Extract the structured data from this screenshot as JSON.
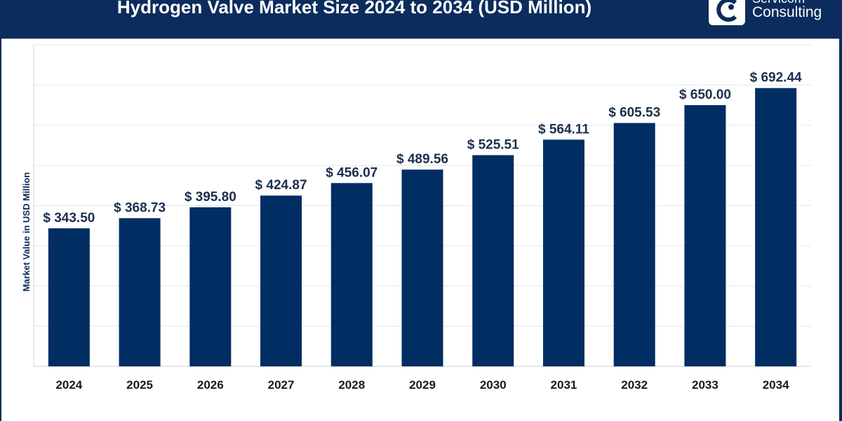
{
  "header": {
    "title": "Hydrogen Valve Market Size 2024 to 2034 (USD Million)",
    "logo_line1": "Servicom",
    "logo_line2": "Consulting"
  },
  "colors": {
    "bar": "#002d62",
    "header_bg": "#0b2c5c",
    "grid": "#e3e6ea"
  },
  "chart_data": {
    "type": "bar",
    "title": "Hydrogen Valve Market Size 2024 to 2034 (USD Million)",
    "xlabel": "",
    "ylabel": "Market Value in USD Million",
    "categories": [
      "2024",
      "2025",
      "2026",
      "2027",
      "2028",
      "2029",
      "2030",
      "2031",
      "2032",
      "2033",
      "2034"
    ],
    "values": [
      343.5,
      368.73,
      395.8,
      424.87,
      456.07,
      489.56,
      525.51,
      564.11,
      605.53,
      650.0,
      692.44
    ],
    "data_labels": [
      "$ 343.50",
      "$ 368.73",
      "$ 395.80",
      "$ 424.87",
      "$ 456.07",
      "$ 489.56",
      "$ 525.51",
      "$ 564.11",
      "$ 605.53",
      "$ 650.00",
      "$ 692.44"
    ],
    "ylim": [
      0,
      800
    ],
    "grid": true,
    "legend": "none"
  }
}
